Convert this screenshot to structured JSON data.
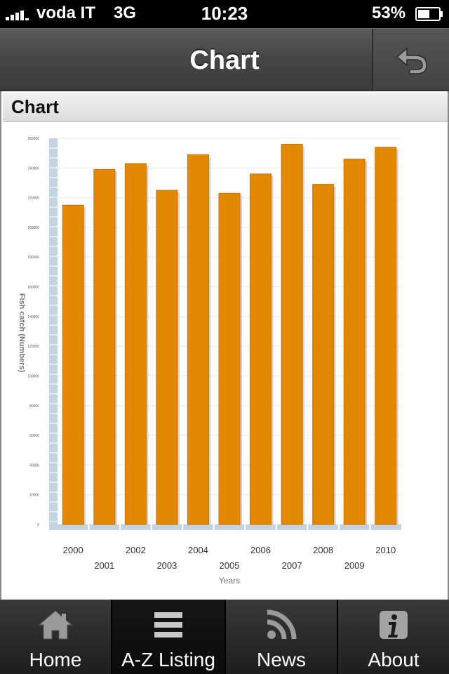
{
  "status_bar": {
    "carrier": "voda IT",
    "network": "3G",
    "time": "10:23",
    "battery": "53%"
  },
  "nav": {
    "title": "Chart",
    "back_icon": "back-arrow-icon"
  },
  "section": {
    "title": "Chart"
  },
  "chart_data": {
    "type": "bar",
    "categories": [
      "2000",
      "2001",
      "2002",
      "2003",
      "2004",
      "2005",
      "2006",
      "2007",
      "2008",
      "2009",
      "2010"
    ],
    "values": [
      215000,
      239000,
      243000,
      225000,
      249000,
      223000,
      236000,
      256000,
      229000,
      246000,
      254000
    ],
    "xlabel": "Years",
    "ylabel": "Fish catch (Numbers)",
    "ylim": [
      0,
      260000
    ],
    "yticks": [
      0,
      20000,
      40000,
      60000,
      80000,
      100000,
      120000,
      140000,
      160000,
      180000,
      200000,
      220000,
      240000,
      260000
    ],
    "bar_color": "#e38800",
    "axis_color": "#c3d3e2",
    "grid": true
  },
  "tabs": [
    {
      "label": "Home",
      "icon": "home-icon",
      "active": false
    },
    {
      "label": "A-Z Listing",
      "icon": "list-icon",
      "active": true
    },
    {
      "label": "News",
      "icon": "rss-icon",
      "active": false
    },
    {
      "label": "About",
      "icon": "info-icon",
      "active": false
    }
  ]
}
